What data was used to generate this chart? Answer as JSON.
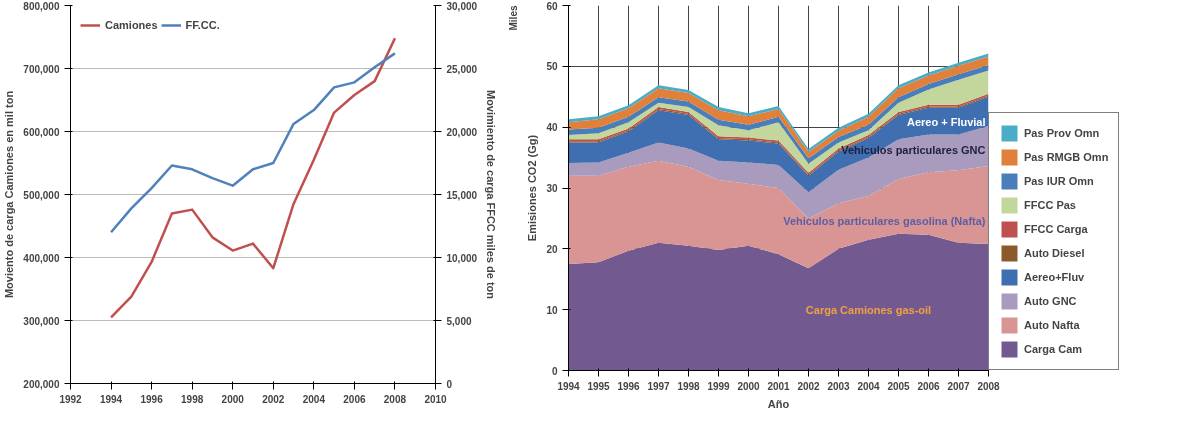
{
  "chart_data": [
    {
      "type": "line",
      "xlim": [
        1992,
        2010
      ],
      "xticks": [
        1992,
        1994,
        1996,
        1998,
        2000,
        2002,
        2004,
        2006,
        2008,
        2010
      ],
      "ylim": [
        200000,
        800000
      ],
      "yticks": [
        {
          "value": 200000,
          "label": "200,000"
        },
        {
          "value": 300000,
          "label": "300,000"
        },
        {
          "value": 400000,
          "label": "400,000"
        },
        {
          "value": 500000,
          "label": "500,000"
        },
        {
          "value": 600000,
          "label": "600,000"
        },
        {
          "value": 700000,
          "label": "700,000"
        },
        {
          "value": 800000,
          "label": "800,000"
        }
      ],
      "y2lim": [
        0,
        30000
      ],
      "y2ticks": [
        0,
        {
          "value": 5000,
          "label": "5,000"
        },
        {
          "value": 10000,
          "label": "10,000"
        },
        {
          "value": 15000,
          "label": "15,000"
        },
        {
          "value": 20000,
          "label": "20,000"
        },
        {
          "value": 25000,
          "label": "25,000"
        },
        {
          "value": 30000,
          "label": "30,000"
        }
      ],
      "ylabel": "Moviento de carga Camiones en mil ton",
      "y2label": "Movimiento de carga FFCC miles de ton",
      "grid": "y",
      "legend": "top left",
      "x": [
        1994,
        1995,
        1996,
        1997,
        1998,
        1999,
        2000,
        2001,
        2002,
        2003,
        2004,
        2005,
        2006,
        2007,
        2008
      ],
      "series": [
        {
          "name": "Camiones",
          "color": "#c0504d",
          "values": [
            305000,
            338000,
            393000,
            470000,
            476000,
            432000,
            411000,
            422000,
            383000,
            485000,
            555000,
            630000,
            658000,
            680000,
            748000
          ]
        },
        {
          "name": "FF.CC.",
          "color": "#4f81bd",
          "axis": "y2",
          "values": [
            12000,
            13900,
            15500,
            17300,
            17000,
            16300,
            15700,
            17000,
            17500,
            20600,
            21700,
            23500,
            23900,
            25100,
            26200
          ]
        }
      ]
    },
    {
      "type": "area",
      "stacked": true,
      "xlim": [
        1994,
        2008
      ],
      "xticks": [
        1994,
        1995,
        1996,
        1997,
        1998,
        1999,
        2000,
        2001,
        2002,
        2003,
        2004,
        2005,
        2006,
        2007,
        2008
      ],
      "ylim": [
        0,
        60
      ],
      "yticks": [
        0,
        10,
        20,
        30,
        40,
        50,
        60
      ],
      "xlabel": "Año",
      "ylabel": "Emisiones CO2 (Gg)",
      "grid": true,
      "legend": "right",
      "x": [
        1994,
        1995,
        1996,
        1997,
        1998,
        1999,
        2000,
        2001,
        2002,
        2003,
        2004,
        2005,
        2006,
        2007,
        2008
      ],
      "annotations": [
        "Miles",
        "Aereo + Fluvial",
        "Vehiculos particulares GNC",
        "Vehiculos particulares gasolina (Nafta)",
        "Carga Camiones gas-oil"
      ],
      "series": [
        {
          "name": "Carga Cam",
          "color": "#725a91",
          "values": [
            17.5,
            17.8,
            19.7,
            21.0,
            20.5,
            19.8,
            20.5,
            19.1,
            16.8,
            20.0,
            21.5,
            22.5,
            22.3,
            21.0,
            20.8
          ]
        },
        {
          "name": "Auto Nafta",
          "color": "#d99594",
          "values": [
            14.5,
            14.2,
            13.8,
            13.5,
            13.0,
            11.5,
            10.2,
            10.9,
            8.2,
            7.5,
            7.2,
            9.0,
            10.3,
            11.9,
            12.8
          ]
        },
        {
          "name": "Auto GNC",
          "color": "#a99bbd",
          "values": [
            2.1,
            2.2,
            2.3,
            3.0,
            3.0,
            3.2,
            3.5,
            3.8,
            4.3,
            5.5,
            6.3,
            6.5,
            6.2,
            5.9,
            6.6
          ]
        },
        {
          "name": "Aereo+Fluv",
          "color": "#3f6fb0",
          "values": [
            3.4,
            3.3,
            3.5,
            5.3,
            5.5,
            3.5,
            3.6,
            3.5,
            2.7,
            3.0,
            3.2,
            4.0,
            4.4,
            4.4,
            4.8
          ]
        },
        {
          "name": "Auto Diesel",
          "color": "#8b5a2b",
          "values": [
            0.2,
            0.2,
            0.2,
            0.2,
            0.2,
            0.2,
            0.2,
            0.2,
            0.2,
            0.2,
            0.2,
            0.2,
            0.2,
            0.2,
            0.2
          ]
        },
        {
          "name": "FFCC Carga",
          "color": "#c0504d",
          "values": [
            0.3,
            0.3,
            0.3,
            0.3,
            0.3,
            0.3,
            0.3,
            0.3,
            0.3,
            0.3,
            0.3,
            0.3,
            0.3,
            0.3,
            0.3
          ]
        },
        {
          "name": "FFCC Pas",
          "color": "#c3d69b",
          "values": [
            0.7,
            1.0,
            1.0,
            0.7,
            0.8,
            1.8,
            1.2,
            3.0,
            1.5,
            1.0,
            0.8,
            1.5,
            2.5,
            4.1,
            3.8
          ]
        },
        {
          "name": "Pas IUR Omn",
          "color": "#4a7ebb",
          "values": [
            0.9,
            0.9,
            0.9,
            0.9,
            0.9,
            0.9,
            0.9,
            0.9,
            0.9,
            0.9,
            0.9,
            0.9,
            0.9,
            0.9,
            0.9
          ]
        },
        {
          "name": "Pas RMGB Omn",
          "color": "#e0803a",
          "values": [
            1.2,
            1.4,
            1.4,
            1.5,
            1.4,
            1.6,
            1.4,
            1.3,
            1.0,
            1.0,
            1.3,
            1.5,
            1.4,
            1.4,
            1.4
          ]
        },
        {
          "name": "Pas Prov Omn",
          "color": "#4bacc6",
          "values": [
            0.5,
            0.5,
            0.5,
            0.5,
            0.5,
            0.5,
            0.5,
            0.5,
            0.5,
            0.5,
            0.5,
            0.5,
            0.5,
            0.5,
            0.5
          ]
        }
      ]
    }
  ]
}
